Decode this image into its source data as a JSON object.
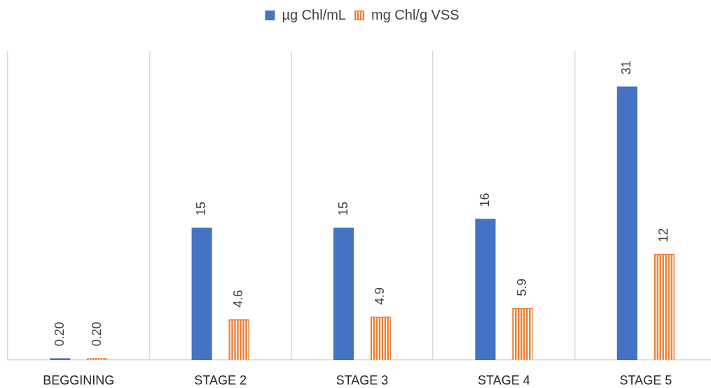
{
  "chart_data": {
    "type": "bar",
    "categories": [
      "BEGGINING",
      "STAGE 2",
      "STAGE 3",
      "STAGE 4",
      "STAGE 5"
    ],
    "series": [
      {
        "name": "µg Chl/mL",
        "color": "#4472c4",
        "values": [
          0.2,
          15,
          15,
          16,
          31
        ],
        "value_labels": [
          "0.20",
          "15",
          "15",
          "16",
          "31"
        ]
      },
      {
        "name": "mg Chl/g VSS",
        "color": "#ed7d31",
        "values": [
          0.2,
          4.6,
          4.9,
          5.9,
          12
        ],
        "value_labels": [
          "0.20",
          "4.6",
          "4.9",
          "5.9",
          "12"
        ]
      }
    ],
    "ylim": [
      0,
      35
    ],
    "grid": "x",
    "legend": "top",
    "tick_labels": "x"
  }
}
